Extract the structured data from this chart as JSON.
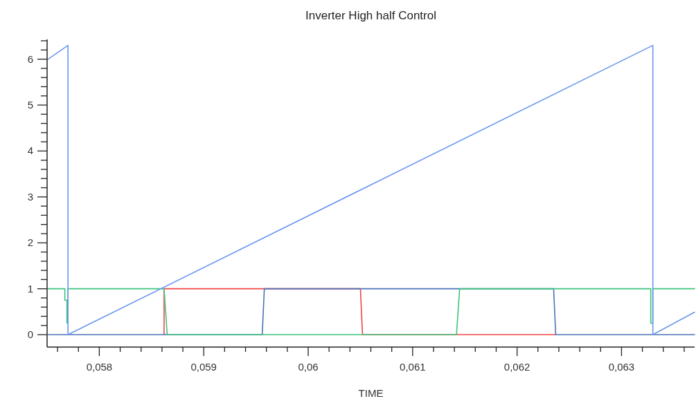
{
  "chart_data": {
    "type": "line",
    "title": "Inverter High half Control",
    "xlabel": "TIME",
    "xlim": [
      0.0575,
      0.0637
    ],
    "ylim": [
      -0.27,
      6.43
    ],
    "xticks": [
      {
        "value": 0.0576,
        "label": null
      },
      {
        "value": 0.0578,
        "label": null
      },
      {
        "value": 0.058,
        "label": "0,058"
      },
      {
        "value": 0.0582,
        "label": null
      },
      {
        "value": 0.0584,
        "label": null
      },
      {
        "value": 0.0586,
        "label": null
      },
      {
        "value": 0.0588,
        "label": null
      },
      {
        "value": 0.059,
        "label": "0,059"
      },
      {
        "value": 0.0592,
        "label": null
      },
      {
        "value": 0.0594,
        "label": null
      },
      {
        "value": 0.0596,
        "label": null
      },
      {
        "value": 0.0598,
        "label": null
      },
      {
        "value": 0.06,
        "label": "0,06"
      },
      {
        "value": 0.0602,
        "label": null
      },
      {
        "value": 0.0604,
        "label": null
      },
      {
        "value": 0.0606,
        "label": null
      },
      {
        "value": 0.0608,
        "label": null
      },
      {
        "value": 0.061,
        "label": "0,061"
      },
      {
        "value": 0.0612,
        "label": null
      },
      {
        "value": 0.0614,
        "label": null
      },
      {
        "value": 0.0616,
        "label": null
      },
      {
        "value": 0.0618,
        "label": null
      },
      {
        "value": 0.062,
        "label": "0,062"
      },
      {
        "value": 0.0622,
        "label": null
      },
      {
        "value": 0.0624,
        "label": null
      },
      {
        "value": 0.0626,
        "label": null
      },
      {
        "value": 0.0628,
        "label": null
      },
      {
        "value": 0.063,
        "label": "0,063"
      },
      {
        "value": 0.0632,
        "label": null
      },
      {
        "value": 0.0634,
        "label": null
      },
      {
        "value": 0.0636,
        "label": null
      }
    ],
    "yticks": [
      0,
      {
        "value": 0.2,
        "label": null
      },
      {
        "value": 0.4,
        "label": null
      },
      {
        "value": 0.6,
        "label": null
      },
      {
        "value": 0.8,
        "label": null
      },
      1,
      {
        "value": 1.2,
        "label": null
      },
      {
        "value": 1.4,
        "label": null
      },
      {
        "value": 1.6,
        "label": null
      },
      {
        "value": 1.8,
        "label": null
      },
      2,
      {
        "value": 2.2,
        "label": null
      },
      {
        "value": 2.4,
        "label": null
      },
      {
        "value": 2.6,
        "label": null
      },
      {
        "value": 2.8,
        "label": null
      },
      3,
      {
        "value": 3.2,
        "label": null
      },
      {
        "value": 3.4,
        "label": null
      },
      {
        "value": 3.6,
        "label": null
      },
      {
        "value": 3.8,
        "label": null
      },
      4,
      {
        "value": 4.2,
        "label": null
      },
      {
        "value": 4.4,
        "label": null
      },
      {
        "value": 4.6,
        "label": null
      },
      {
        "value": 4.8,
        "label": null
      },
      5,
      {
        "value": 5.2,
        "label": null
      },
      {
        "value": 5.4,
        "label": null
      },
      {
        "value": 5.6,
        "label": null
      },
      {
        "value": 5.8,
        "label": null
      },
      6,
      {
        "value": 6.2,
        "label": null
      },
      {
        "value": 6.4,
        "label": null
      }
    ],
    "grid": false,
    "marker": "none",
    "line_style": "solid",
    "series": [
      {
        "color": "#f04444",
        "x": [
          0.05862,
          0.05862,
          0.0605,
          0.06052,
          0.06237
        ],
        "values": [
          0,
          1,
          1,
          0,
          0
        ]
      },
      {
        "color": "#4a72b8",
        "x": [
          0.05751,
          0.05956,
          0.05958,
          0.06235,
          0.06237,
          0.0637
        ],
        "values": [
          0,
          0,
          1,
          1,
          0,
          0
        ]
      },
      {
        "color": "#3cc47c",
        "x": [
          0.05751,
          0.05767,
          0.05767,
          0.05769,
          0.05769,
          0.0577,
          0.0577,
          0.05862,
          0.05865,
          0.06142,
          0.06145,
          0.06328,
          0.06328,
          0.0633,
          0.0633,
          0.0637
        ],
        "values": [
          1,
          1,
          0.75,
          0.75,
          0.25,
          0.25,
          1,
          1,
          0,
          0,
          1,
          1,
          0.25,
          0.25,
          1,
          1
        ]
      },
      {
        "color": "#6b96f0",
        "x": [
          0.05751,
          0.0577,
          0.0577,
          0.0633,
          0.0633,
          0.0637
        ],
        "values": [
          6.0,
          6.3,
          0,
          6.3,
          0,
          0.49
        ]
      }
    ]
  }
}
